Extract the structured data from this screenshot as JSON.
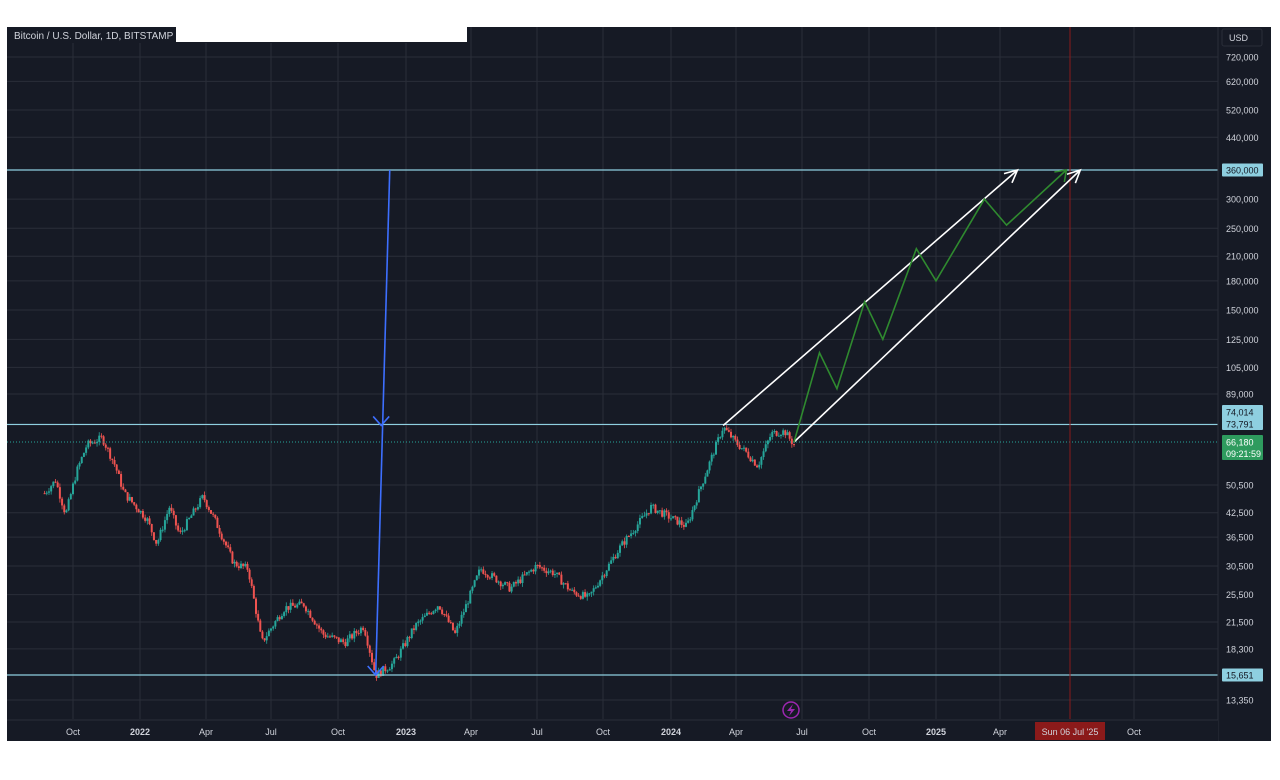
{
  "header": {
    "title": "Bitcoin / U.S. Dollar, 1D, BITSTAMP"
  },
  "colors": {
    "background": "#161a25",
    "grid": "#2a2e39",
    "candle_up": "#26a69a",
    "candle_down": "#ef5350",
    "hline": "#8ecfe0",
    "price_line": "#26a69a",
    "drop_arrow": "#3d6fff",
    "channel": "#ffffff",
    "zigzag": "#2f8a2f",
    "date_marker": "#8b1a1a",
    "label_text": "#d1d4dc"
  },
  "chart_data": {
    "type": "candlestick",
    "title": "Bitcoin / U.S. Dollar, 1D, BITSTAMP",
    "currency_label": "USD",
    "y_scale": "log",
    "y_ticks": [
      "720,000",
      "620,000",
      "520,000",
      "440,000",
      "360,000",
      "300,000",
      "250,000",
      "210,000",
      "180,000",
      "150,000",
      "125,000",
      "105,000",
      "89,000",
      "74,014",
      "73,791",
      "66,180",
      "50,500",
      "42,500",
      "36,500",
      "30,500",
      "25,500",
      "21,500",
      "18,300",
      "15,651",
      "13,350"
    ],
    "x_ticks": [
      "Oct",
      "2022",
      "Apr",
      "Jul",
      "Oct",
      "2023",
      "Apr",
      "Jul",
      "Oct",
      "2024",
      "Apr",
      "Jul",
      "Oct",
      "2025",
      "Apr",
      "Sun 06 Jul '25",
      "Oct"
    ],
    "series": [
      {
        "values_approx": [
          [
            "2021-08-23",
            48000
          ],
          [
            "2021-09-07",
            52000
          ],
          [
            "2021-09-21",
            42000
          ],
          [
            "2021-10-06",
            55000
          ],
          [
            "2021-10-20",
            65000
          ],
          [
            "2021-11-10",
            68000
          ],
          [
            "2021-11-28",
            57000
          ],
          [
            "2021-12-10",
            48000
          ],
          [
            "2022-01-10",
            41000
          ],
          [
            "2022-01-24",
            35000
          ],
          [
            "2022-02-10",
            44000
          ],
          [
            "2022-02-24",
            37000
          ],
          [
            "2022-03-28",
            47000
          ],
          [
            "2022-04-15",
            40000
          ],
          [
            "2022-05-10",
            31000
          ],
          [
            "2022-05-30",
            30000
          ],
          [
            "2022-06-18",
            19000
          ],
          [
            "2022-07-20",
            23500
          ],
          [
            "2022-08-15",
            24000
          ],
          [
            "2022-09-10",
            20000
          ],
          [
            "2022-10-10",
            19000
          ],
          [
            "2022-11-05",
            21000
          ],
          [
            "2022-11-21",
            15600
          ],
          [
            "2022-12-15",
            16800
          ],
          [
            "2023-01-14",
            21000
          ],
          [
            "2023-02-15",
            24000
          ],
          [
            "2023-03-10",
            20000
          ],
          [
            "2023-04-14",
            30000
          ],
          [
            "2023-05-25",
            26500
          ],
          [
            "2023-06-30",
            30500
          ],
          [
            "2023-07-25",
            29200
          ],
          [
            "2023-08-18",
            26000
          ],
          [
            "2023-09-11",
            25000
          ],
          [
            "2023-10-25",
            34500
          ],
          [
            "2023-12-05",
            44000
          ],
          [
            "2024-01-23",
            39000
          ],
          [
            "2024-02-15",
            52000
          ],
          [
            "2024-03-14",
            73000
          ],
          [
            "2024-04-01",
            66000
          ],
          [
            "2024-04-15",
            62000
          ],
          [
            "2024-05-01",
            57000
          ],
          [
            "2024-05-20",
            70000
          ],
          [
            "2024-06-07",
            71000
          ],
          [
            "2024-06-20",
            65000
          ]
        ]
      }
    ],
    "horizontal_levels": [
      360000,
      74014,
      73791,
      15651
    ],
    "last_price": 66180,
    "countdown": "09:21:59",
    "annotations": {
      "drop_arrow": {
        "from": [
          "2022-12-10",
          360000
        ],
        "to": [
          "2022-11-21",
          15651
        ]
      },
      "projection_channel": {
        "upper": {
          "from": [
            "2024-03-14",
            73791
          ],
          "to": [
            "2025-04-25",
            360000
          ]
        },
        "lower": {
          "from": [
            "2024-06-20",
            66180
          ],
          "to": [
            "2025-07-20",
            360000
          ]
        }
      },
      "zigzag": [
        [
          "2024-06-20",
          66180
        ],
        [
          "2024-07-25",
          115000
        ],
        [
          "2024-08-18",
          92000
        ],
        [
          "2024-09-25",
          158000
        ],
        [
          "2024-10-20",
          125000
        ],
        [
          "2024-12-05",
          220000
        ],
        [
          "2025-01-01",
          180000
        ],
        [
          "2025-03-10",
          300000
        ],
        [
          "2025-04-10",
          255000
        ],
        [
          "2025-07-01",
          360000
        ]
      ],
      "date_marker": "2025-07-06"
    }
  }
}
